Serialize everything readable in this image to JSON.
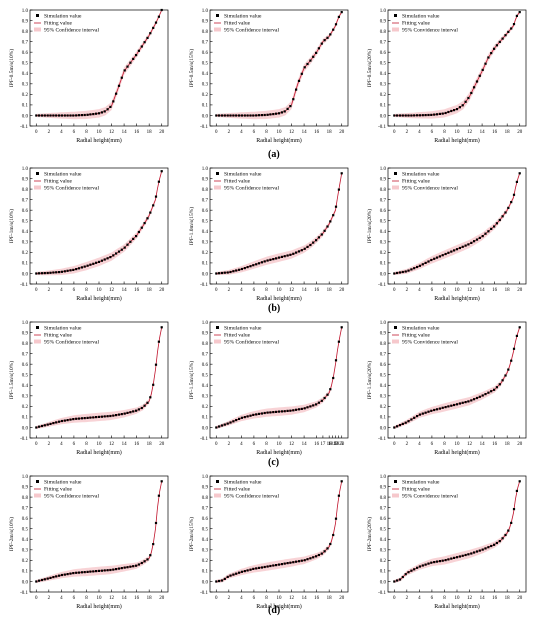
{
  "legend": {
    "simulation": "Simulation value",
    "fitting": [
      "Fitting value",
      "Fitted value",
      "Fitting value"
    ],
    "ci": [
      "95% Confidence interval",
      "95% Confidence interval",
      "95% Convidence interval"
    ]
  },
  "xlabel": "Radial height(mm)",
  "colors": {
    "sim": "#000000",
    "fit": "#c01830",
    "band": "#f6c8cc"
  },
  "row_labels": [
    "(a)",
    "(b)",
    "(c)",
    "(d)"
  ],
  "chart_data": [
    {
      "type": "scatter",
      "row": "a",
      "ylabel": "IPF-0.5m/s(10%)",
      "xlim": [
        -1,
        21
      ],
      "ylim": [
        -0.1,
        1.0
      ],
      "xticks": [
        0,
        2,
        4,
        6,
        8,
        10,
        12,
        14,
        16,
        18,
        20
      ],
      "yticks": [
        -0.1,
        0.0,
        0.1,
        0.2,
        0.3,
        0.4,
        0.5,
        0.6,
        0.7,
        0.8,
        0.9,
        1.0
      ],
      "x": [
        0,
        3,
        6,
        8,
        10,
        11,
        12,
        13,
        14,
        15,
        16,
        17,
        18,
        19,
        19.5,
        20
      ],
      "y": [
        0,
        0,
        0,
        0.005,
        0.02,
        0.04,
        0.09,
        0.25,
        0.42,
        0.5,
        0.58,
        0.67,
        0.76,
        0.87,
        0.93,
        1.0
      ]
    },
    {
      "type": "scatter",
      "row": "a",
      "ylabel": "IPF-0.5m/s(15%)",
      "xlim": [
        -1,
        21
      ],
      "ylim": [
        -0.1,
        1.0
      ],
      "xticks": [
        0,
        2,
        4,
        6,
        8,
        10,
        12,
        14,
        16,
        18,
        20
      ],
      "yticks": [
        -0.1,
        0.0,
        0.1,
        0.2,
        0.3,
        0.4,
        0.5,
        0.6,
        0.7,
        0.8,
        0.9,
        1.0
      ],
      "x": [
        0,
        3,
        6,
        8,
        10,
        11,
        12,
        13,
        14,
        15,
        16,
        17,
        18,
        19,
        19.5,
        20
      ],
      "y": [
        0,
        0,
        0,
        0.005,
        0.02,
        0.04,
        0.1,
        0.3,
        0.45,
        0.52,
        0.6,
        0.7,
        0.75,
        0.85,
        0.93,
        0.98
      ]
    },
    {
      "type": "scatter",
      "row": "a",
      "ylabel": "IPF-0.5m/s(20%)",
      "xlim": [
        -1,
        21
      ],
      "ylim": [
        -0.1,
        1.0
      ],
      "xticks": [
        0,
        2,
        4,
        6,
        8,
        10,
        12,
        14,
        16,
        18,
        20
      ],
      "yticks": [
        -0.1,
        0.0,
        0.1,
        0.2,
        0.3,
        0.4,
        0.5,
        0.6,
        0.7,
        0.8,
        0.9,
        1.0
      ],
      "x": [
        0,
        3,
        6,
        8,
        10,
        11,
        12,
        13,
        14,
        15,
        16,
        17,
        18,
        19,
        19.5,
        20
      ],
      "y": [
        0,
        0,
        0.005,
        0.02,
        0.06,
        0.1,
        0.18,
        0.3,
        0.42,
        0.55,
        0.64,
        0.71,
        0.78,
        0.85,
        0.94,
        0.98
      ]
    },
    {
      "type": "scatter",
      "row": "b",
      "ylabel": "IPF-1m/s(10%)",
      "xlim": [
        -1,
        21
      ],
      "ylim": [
        -0.1,
        1.0
      ],
      "xticks": [
        0,
        2,
        4,
        6,
        8,
        10,
        12,
        14,
        16,
        18,
        20
      ],
      "yticks": [
        -0.1,
        0.0,
        0.1,
        0.2,
        0.3,
        0.4,
        0.5,
        0.6,
        0.7,
        0.8,
        0.9,
        1.0
      ],
      "x": [
        0,
        2,
        4,
        6,
        8,
        10,
        12,
        14,
        15,
        16,
        17,
        18,
        19,
        19.5,
        20
      ],
      "y": [
        0,
        0.005,
        0.015,
        0.035,
        0.07,
        0.11,
        0.16,
        0.24,
        0.3,
        0.36,
        0.45,
        0.55,
        0.7,
        0.86,
        0.97
      ]
    },
    {
      "type": "scatter",
      "row": "b",
      "ylabel": "IPF-1.0m/s(15%)",
      "xlim": [
        -1,
        21
      ],
      "ylim": [
        -0.1,
        1.0
      ],
      "xticks": [
        0,
        2,
        4,
        6,
        8,
        10,
        12,
        14,
        16,
        18,
        20
      ],
      "yticks": [
        -0.1,
        0.0,
        0.1,
        0.2,
        0.3,
        0.4,
        0.5,
        0.6,
        0.7,
        0.8,
        0.9,
        1.0
      ],
      "x": [
        0,
        2,
        4,
        6,
        8,
        10,
        12,
        14,
        15,
        16,
        17,
        18,
        19,
        19.5,
        20
      ],
      "y": [
        0,
        0.01,
        0.04,
        0.08,
        0.12,
        0.15,
        0.18,
        0.23,
        0.27,
        0.32,
        0.38,
        0.47,
        0.6,
        0.78,
        0.95
      ]
    },
    {
      "type": "scatter",
      "row": "b",
      "ylabel": "IPF-1m/s(20%)",
      "xlim": [
        -1,
        21
      ],
      "ylim": [
        -0.1,
        1.0
      ],
      "xticks": [
        0,
        2,
        4,
        6,
        8,
        10,
        12,
        14,
        16,
        18,
        20
      ],
      "yticks": [
        -0.1,
        0.0,
        0.1,
        0.2,
        0.3,
        0.4,
        0.5,
        0.6,
        0.7,
        0.8,
        0.9,
        1.0
      ],
      "x": [
        0,
        2,
        4,
        6,
        8,
        10,
        12,
        14,
        15,
        16,
        17,
        18,
        19,
        19.5,
        20
      ],
      "y": [
        0,
        0.02,
        0.07,
        0.13,
        0.18,
        0.23,
        0.28,
        0.35,
        0.4,
        0.45,
        0.52,
        0.6,
        0.72,
        0.86,
        0.95
      ]
    },
    {
      "type": "scatter",
      "row": "c",
      "ylabel": "IPF-1.5m/s(10%)",
      "xlim": [
        -1,
        21
      ],
      "ylim": [
        -0.1,
        1.0
      ],
      "xticks": [
        0,
        2,
        4,
        6,
        8,
        10,
        12,
        14,
        16,
        18,
        20
      ],
      "yticks": [
        -0.1,
        0.0,
        0.1,
        0.2,
        0.3,
        0.4,
        0.5,
        0.6,
        0.7,
        0.8,
        0.9,
        1.0
      ],
      "x": [
        0,
        2,
        4,
        6,
        8,
        10,
        12,
        14,
        16,
        17,
        18,
        18.5,
        19,
        19.5,
        20
      ],
      "y": [
        0,
        0.03,
        0.06,
        0.08,
        0.09,
        0.1,
        0.11,
        0.13,
        0.16,
        0.19,
        0.25,
        0.35,
        0.55,
        0.8,
        0.95
      ]
    },
    {
      "type": "scatter",
      "row": "c",
      "ylabel": "IPF-1.5m/s(15%)",
      "xlim": [
        -1,
        21
      ],
      "ylim": [
        -0.1,
        1.0
      ],
      "xticks": [
        0,
        2,
        4,
        6,
        8,
        10,
        12,
        14,
        16,
        17,
        18,
        18.5,
        19,
        19.5,
        20
      ],
      "yticks": [
        -0.1,
        0.0,
        0.1,
        0.2,
        0.3,
        0.4,
        0.5,
        0.6,
        0.7,
        0.8,
        0.9,
        1.0
      ],
      "x": [
        0,
        2,
        4,
        6,
        8,
        10,
        12,
        14,
        16,
        17,
        18,
        18.5,
        19,
        19.5,
        20
      ],
      "y": [
        0,
        0.04,
        0.09,
        0.12,
        0.14,
        0.15,
        0.16,
        0.18,
        0.22,
        0.26,
        0.33,
        0.42,
        0.6,
        0.8,
        0.95
      ]
    },
    {
      "type": "scatter",
      "row": "c",
      "ylabel": "IPF-1.5m/s(20%)",
      "xlim": [
        -1,
        21
      ],
      "ylim": [
        -0.1,
        1.0
      ],
      "xticks": [
        0,
        2,
        4,
        6,
        8,
        10,
        12,
        14,
        16,
        18,
        20
      ],
      "yticks": [
        -0.1,
        0.0,
        0.1,
        0.2,
        0.3,
        0.4,
        0.5,
        0.6,
        0.7,
        0.8,
        0.9,
        1.0
      ],
      "x": [
        0,
        2,
        4,
        6,
        8,
        10,
        12,
        14,
        16,
        17,
        18,
        18.5,
        19,
        19.5,
        20
      ],
      "y": [
        0,
        0.05,
        0.12,
        0.16,
        0.19,
        0.22,
        0.25,
        0.3,
        0.36,
        0.42,
        0.52,
        0.6,
        0.72,
        0.86,
        0.95
      ]
    },
    {
      "type": "scatter",
      "row": "d",
      "ylabel": "IPF-2m/s(10%)",
      "xlim": [
        -1,
        21
      ],
      "ylim": [
        -0.1,
        1.0
      ],
      "xticks": [
        0,
        2,
        4,
        6,
        8,
        10,
        12,
        14,
        16,
        18,
        20
      ],
      "yticks": [
        -0.1,
        0.0,
        0.1,
        0.2,
        0.3,
        0.4,
        0.5,
        0.6,
        0.7,
        0.8,
        0.9,
        1.0
      ],
      "x": [
        0,
        2,
        4,
        6,
        8,
        10,
        12,
        14,
        16,
        17,
        18,
        18.5,
        19,
        19.5,
        20
      ],
      "y": [
        0,
        0.03,
        0.06,
        0.08,
        0.09,
        0.1,
        0.11,
        0.13,
        0.15,
        0.18,
        0.22,
        0.3,
        0.5,
        0.8,
        0.95
      ]
    },
    {
      "type": "scatter",
      "row": "d",
      "ylabel": "IPF-2m/s(15%)",
      "xlim": [
        -1,
        21
      ],
      "ylim": [
        -0.1,
        1.0
      ],
      "xticks": [
        0,
        2,
        4,
        6,
        8,
        10,
        12,
        14,
        16,
        18,
        20
      ],
      "yticks": [
        -0.1,
        0.0,
        0.1,
        0.2,
        0.3,
        0.4,
        0.5,
        0.6,
        0.7,
        0.8,
        0.9,
        1.0
      ],
      "x": [
        0,
        1,
        2,
        4,
        6,
        8,
        10,
        12,
        14,
        16,
        17,
        18,
        18.5,
        19,
        19.5,
        20
      ],
      "y": [
        0,
        0.01,
        0.05,
        0.09,
        0.12,
        0.14,
        0.16,
        0.18,
        0.2,
        0.24,
        0.27,
        0.33,
        0.4,
        0.55,
        0.8,
        0.95
      ]
    },
    {
      "type": "scatter",
      "row": "d",
      "ylabel": "IPF-2m/s(20%)",
      "xlim": [
        -1,
        21
      ],
      "ylim": [
        -0.1,
        1.0
      ],
      "xticks": [
        0,
        2,
        4,
        6,
        8,
        10,
        12,
        14,
        16,
        18,
        20
      ],
      "yticks": [
        -0.1,
        0.0,
        0.1,
        0.2,
        0.3,
        0.4,
        0.5,
        0.6,
        0.7,
        0.8,
        0.9,
        1.0
      ],
      "x": [
        0,
        1,
        2,
        4,
        6,
        8,
        10,
        12,
        14,
        16,
        17,
        18,
        18.5,
        19,
        19.5,
        20
      ],
      "y": [
        0,
        0.02,
        0.08,
        0.14,
        0.18,
        0.2,
        0.23,
        0.26,
        0.3,
        0.35,
        0.39,
        0.46,
        0.52,
        0.65,
        0.85,
        0.95
      ]
    }
  ]
}
